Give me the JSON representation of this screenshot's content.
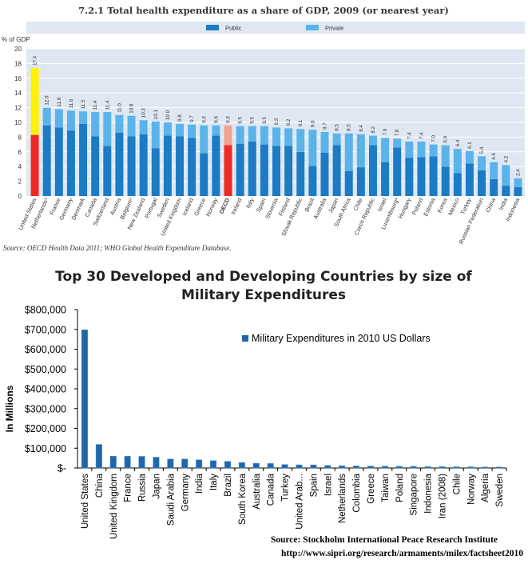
{
  "chart_data": [
    {
      "type": "bar",
      "stacked": true,
      "title": "7.2.1  Total health expenditure as a share of GDP, 2009 (or nearest year)",
      "ylabel": "% of GDP",
      "ylim": [
        0,
        20
      ],
      "yticks": [
        "0",
        "2",
        "4",
        "6",
        "8",
        "10",
        "12",
        "14",
        "16",
        "18",
        "20"
      ],
      "grid": true,
      "legend": [
        "Public",
        "Private"
      ],
      "categories": [
        "United States",
        "Netherlands¹",
        "France",
        "Germany",
        "Denmark",
        "Canada",
        "Switzerland",
        "Austria",
        "Belgium²",
        "New Zealand",
        "Portugal",
        "Sweden",
        "United Kingdom",
        "Iceland",
        "Greece",
        "Norway",
        "OECD",
        "Ireland",
        "Italy",
        "Spain",
        "Slovenia",
        "Finland",
        "Slovak Republic",
        "Brazil",
        "Australia",
        "Japan",
        "South Africa",
        "Chile",
        "Czech Republic",
        "Israel",
        "Luxembourg³",
        "Hungary",
        "Poland",
        "Estonia",
        "Korea",
        "Mexico",
        "Turkey",
        "Russian Federation",
        "China",
        "India",
        "Indonesia"
      ],
      "totals": [
        "17.4",
        "12.0",
        "11.8",
        "11.6",
        "11.5",
        "11.4",
        "11.4",
        "11.0",
        "10.9",
        "10.3",
        "10.1",
        "10.0",
        "9.8",
        "9.7",
        "9.6",
        "9.6",
        "9.6",
        "9.5",
        "9.5",
        "9.5",
        "9.3",
        "9.2",
        "9.1",
        "9.0",
        "8.7",
        "8.5",
        "8.5",
        "8.4",
        "8.2",
        "7.9",
        "7.8",
        "7.4",
        "7.4",
        "7.0",
        "6.9",
        "6.4",
        "6.1",
        "5.4",
        "4.6",
        "4.2",
        "2.4"
      ],
      "series": [
        {
          "name": "Public",
          "values": [
            8.3,
            9.6,
            9.3,
            8.9,
            9.8,
            8.1,
            6.8,
            8.6,
            8.1,
            8.4,
            6.5,
            8.2,
            8.1,
            7.9,
            5.8,
            8.2,
            6.9,
            7.1,
            7.4,
            7.0,
            6.8,
            6.8,
            6.0,
            4.1,
            5.9,
            6.9,
            3.4,
            3.9,
            6.9,
            4.6,
            6.6,
            5.2,
            5.3,
            5.4,
            4.0,
            3.1,
            4.4,
            3.5,
            2.3,
            1.4,
            1.2
          ]
        },
        {
          "name": "Private",
          "values": [
            9.1,
            2.4,
            2.5,
            2.7,
            1.7,
            3.3,
            4.6,
            2.4,
            2.8,
            1.9,
            3.6,
            1.8,
            1.7,
            1.8,
            3.8,
            1.4,
            2.7,
            2.4,
            2.1,
            2.5,
            2.5,
            2.4,
            3.1,
            4.9,
            2.8,
            1.6,
            5.1,
            4.5,
            1.3,
            3.3,
            1.2,
            2.2,
            2.1,
            1.6,
            2.9,
            3.3,
            1.7,
            1.9,
            2.3,
            2.8,
            1.2
          ]
        },
        {
          "name": "highlight",
          "categories": [
            "United States",
            "OECD"
          ]
        }
      ],
      "source": "Source:  OECD Health Data 2011; WHO Global Health Expenditure Database.",
      "colors": {
        "public": "#1b7bc4",
        "private": "#5ab4ea",
        "us_public": "#ee2a24",
        "us_private": "#fff200",
        "oecd_public": "#ee2a24",
        "oecd_private": "#f4a193",
        "grid": "#ffffff",
        "plot_bg": "#dfe7f2"
      }
    },
    {
      "type": "bar",
      "title_line1": "Top 30 Developed and Developing  Countries by size of",
      "title_line2": "Military Expenditures",
      "ylabel": "In Millions",
      "ylim": [
        0,
        800000
      ],
      "yticks": [
        "$-",
        "$100,000",
        "$200,000",
        "$300,000",
        "$400,000",
        "$500,000",
        "$600,000",
        "$700,000",
        "$800,000"
      ],
      "legend": [
        "Military Expenditures in 2010 US Dollars"
      ],
      "categories": [
        "United States",
        "China",
        "United Kingdom",
        "France",
        "Russia",
        "Japan",
        "Saudi Arabia",
        "Germany",
        "India",
        "Italy",
        "Brazil",
        "South Korea",
        "Australia",
        "Canada",
        "Turkey",
        "United Arab...",
        "Spain",
        "Israel",
        "Netherlands",
        "Colombia",
        "Greece",
        "Taiwan",
        "Poland",
        "Singapore",
        "Indonesia",
        "Iran (2008)",
        "Chile",
        "Norway",
        "Algeria",
        "Sweden"
      ],
      "values": [
        698000,
        119000,
        59600,
        59300,
        58700,
        54500,
        45200,
        45200,
        41300,
        37000,
        33500,
        27600,
        24000,
        22800,
        17600,
        16000,
        15800,
        13000,
        11600,
        10400,
        9800,
        9400,
        8700,
        8500,
        7000,
        7000,
        6100,
        6100,
        5600,
        5200
      ],
      "source_line1": "Source:  Stockholm International Peace Research Institute",
      "source_line2": "http://www.sipri.org/research/armaments/milex/factsheet2010",
      "colors": {
        "bar": "#2166a8",
        "bar_light": "#4c92d3",
        "axis": "#000000"
      }
    }
  ]
}
